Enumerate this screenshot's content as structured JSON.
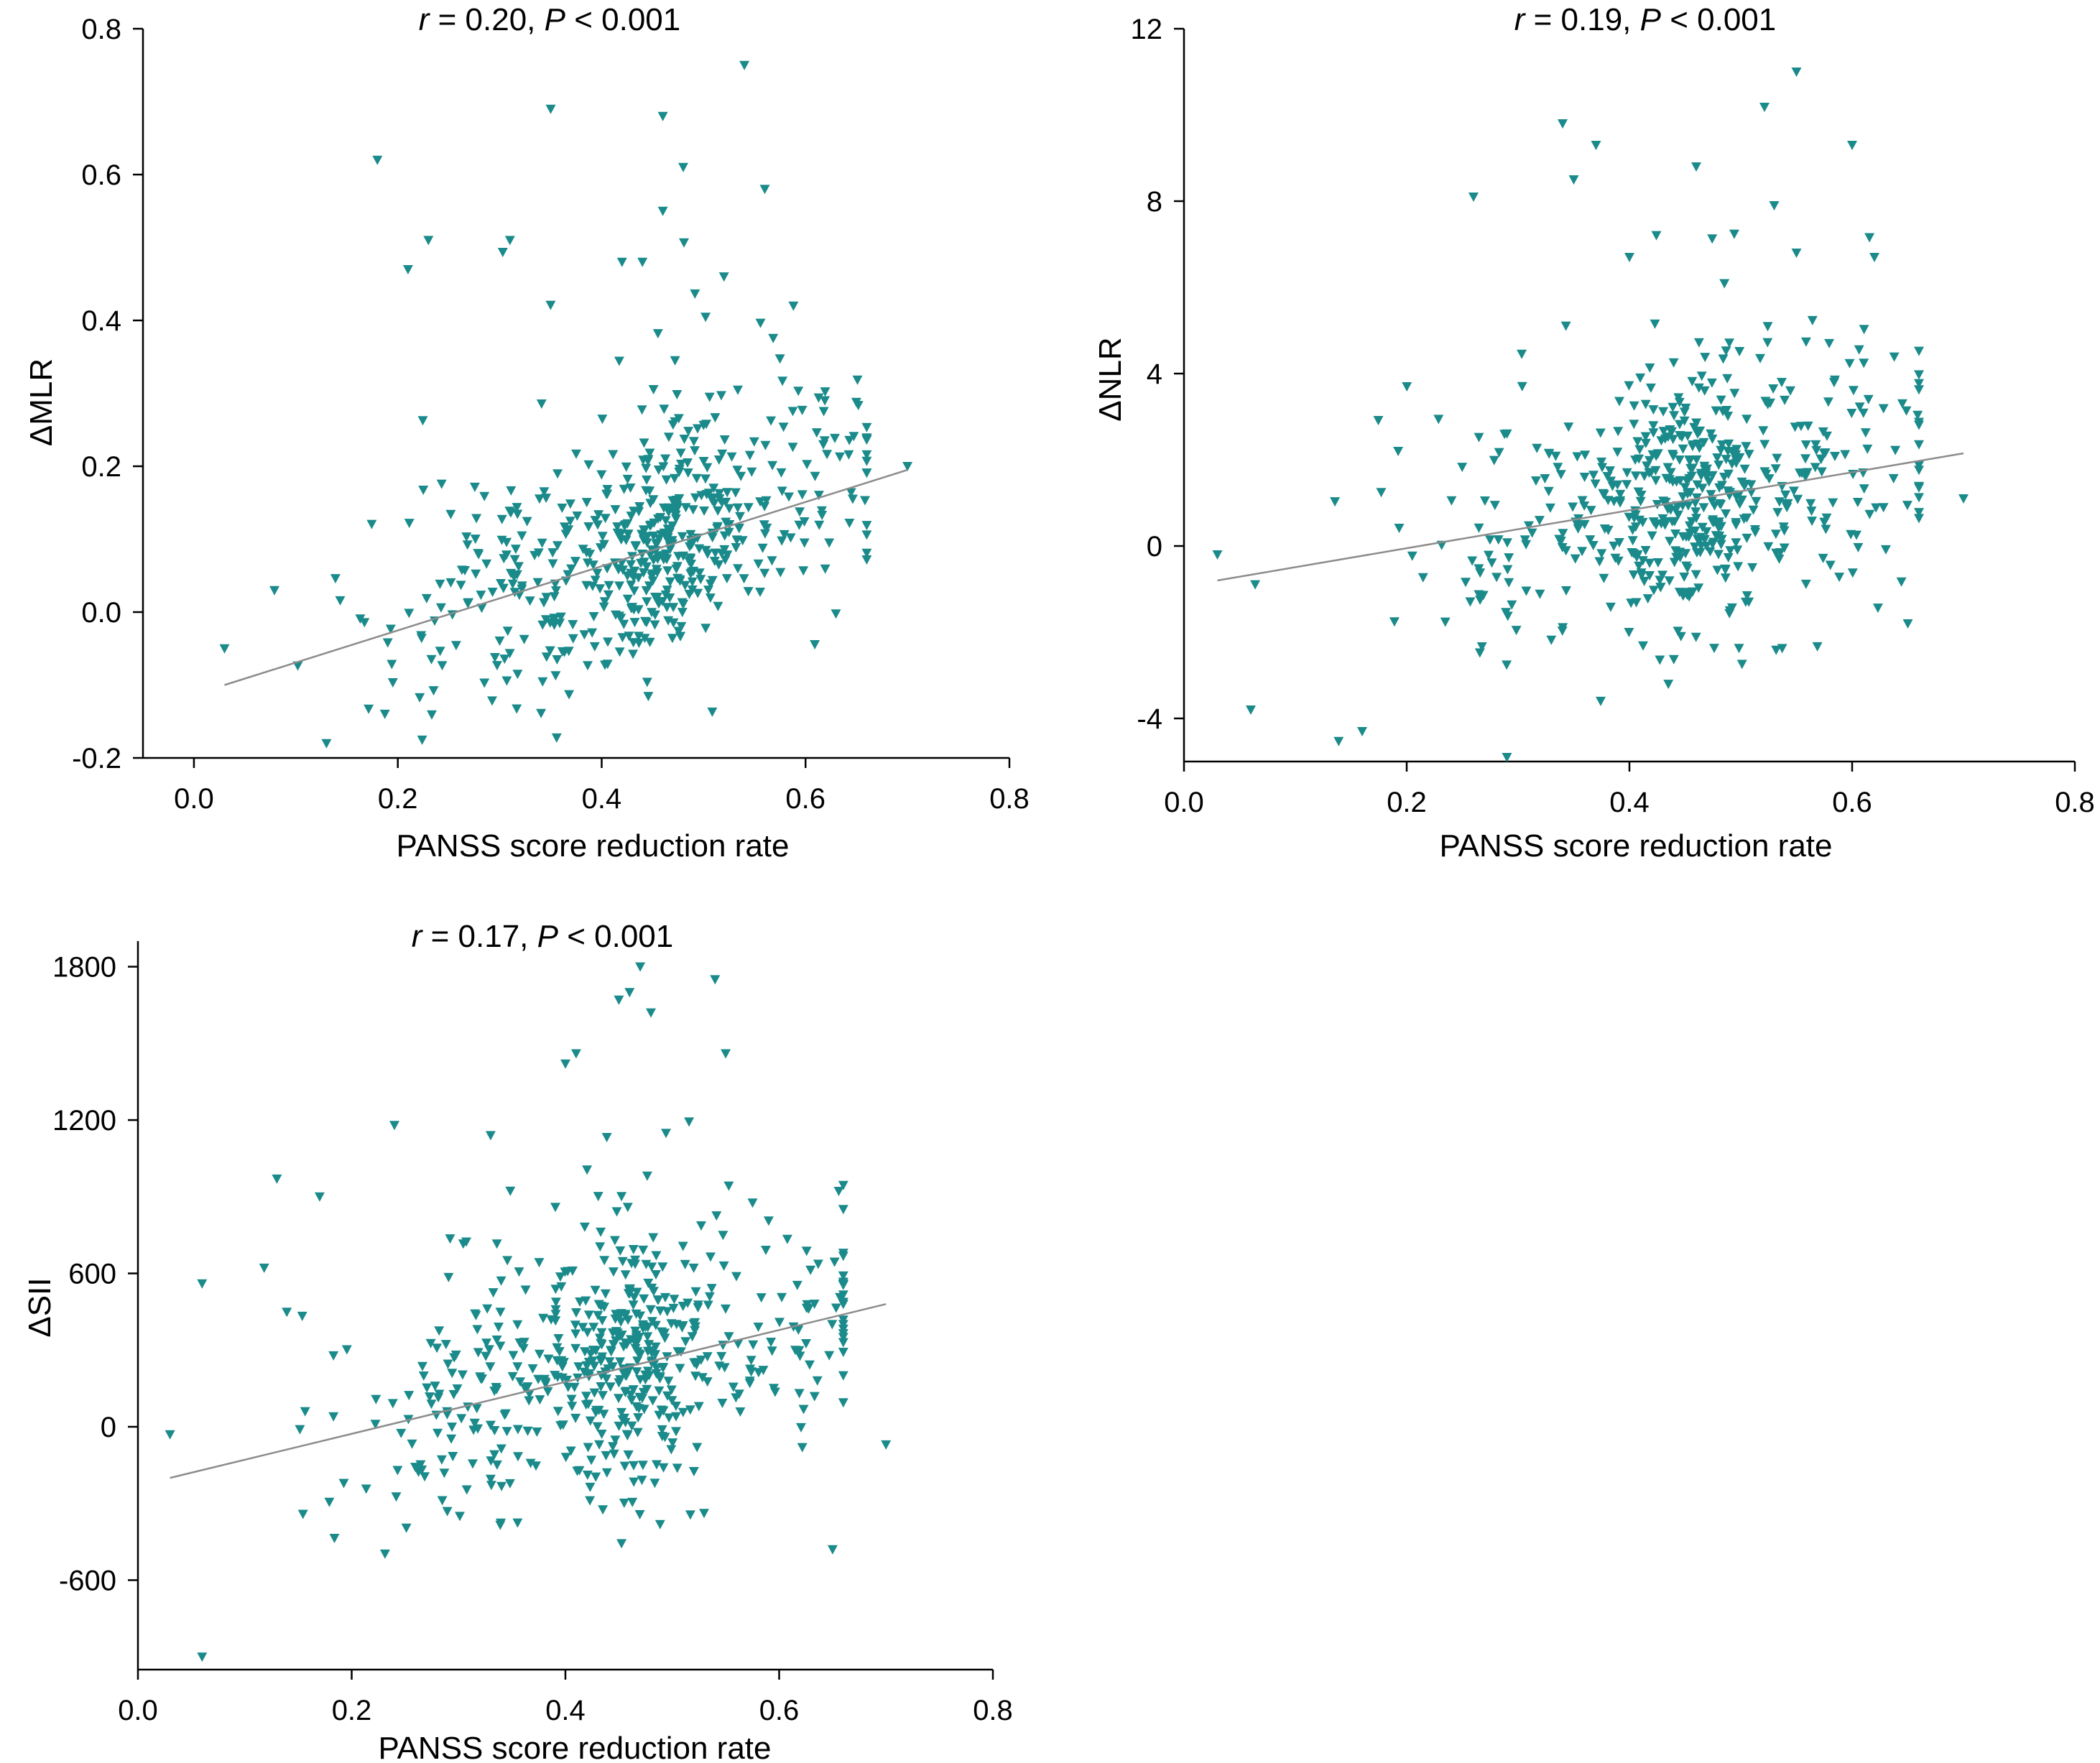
{
  "colors": {
    "marker": "#1a8a8a",
    "fit_line": "#8c8c8c",
    "axis": "#000000"
  },
  "chart_data": [
    {
      "type": "scatter",
      "panel": "top-left",
      "title": {
        "r_symbol": "r",
        "r_text": " = 0.20, ",
        "p_symbol": "P",
        "p_text": " < 0.001"
      },
      "xlabel": "PANSS score reduction rate",
      "ylabel": "ΔMLR",
      "xlim": [
        -0.05,
        0.8
      ],
      "ylim": [
        -0.2,
        0.8
      ],
      "xticks": [
        0.0,
        0.2,
        0.4,
        0.6,
        0.8
      ],
      "xtick_labels": [
        "0.0",
        "0.2",
        "0.4",
        "0.6",
        "0.8"
      ],
      "yticks": [
        -0.2,
        0.0,
        0.2,
        0.4,
        0.6,
        0.8
      ],
      "ytick_labels": [
        "-0.2",
        "0.0",
        "0.2",
        "0.4",
        "0.6",
        "0.8"
      ],
      "fit_line": {
        "x": [
          0.03,
          0.7
        ],
        "y": [
          -0.1,
          0.195
        ]
      },
      "n_points": 560,
      "seed": 11,
      "outliers": [
        [
          0.18,
          0.62
        ],
        [
          0.35,
          0.69
        ],
        [
          0.46,
          0.68
        ],
        [
          0.54,
          0.75
        ],
        [
          0.56,
          0.58
        ],
        [
          0.48,
          0.61
        ],
        [
          0.21,
          0.47
        ],
        [
          0.23,
          0.51
        ],
        [
          0.31,
          0.51
        ],
        [
          0.46,
          0.55
        ],
        [
          0.42,
          0.48
        ],
        [
          0.44,
          0.48
        ],
        [
          0.52,
          0.46
        ],
        [
          0.7,
          0.2
        ],
        [
          0.03,
          -0.05
        ],
        [
          0.13,
          -0.18
        ]
      ]
    },
    {
      "type": "scatter",
      "panel": "top-right",
      "title": {
        "r_symbol": "r",
        "r_text": " = 0.19, ",
        "p_symbol": "P",
        "p_text": " < 0.001"
      },
      "xlabel": "PANSS score reduction rate",
      "ylabel": "ΔNLR",
      "xlim": [
        0.0,
        0.8
      ],
      "ylim": [
        -5,
        12
      ],
      "xticks": [
        0.0,
        0.2,
        0.4,
        0.6,
        0.8
      ],
      "xtick_labels": [
        "0.0",
        "0.2",
        "0.4",
        "0.6",
        "0.8"
      ],
      "yticks": [
        -4,
        0,
        4,
        8,
        12
      ],
      "ytick_labels": [
        "-4",
        "0",
        "4",
        "8",
        "12"
      ],
      "fit_line": {
        "x": [
          0.03,
          0.7
        ],
        "y": [
          -0.8,
          2.15
        ]
      },
      "n_points": 560,
      "seed": 23,
      "outliers": [
        [
          0.55,
          11.0
        ],
        [
          0.34,
          9.8
        ],
        [
          0.37,
          9.3
        ],
        [
          0.6,
          9.3
        ],
        [
          0.26,
          8.1
        ],
        [
          0.35,
          8.5
        ],
        [
          0.46,
          8.8
        ],
        [
          0.53,
          7.9
        ],
        [
          0.55,
          6.8
        ],
        [
          0.62,
          6.7
        ],
        [
          0.4,
          6.7
        ],
        [
          0.29,
          -4.9
        ],
        [
          0.06,
          -3.8
        ],
        [
          0.16,
          -4.3
        ],
        [
          0.03,
          -0.2
        ],
        [
          0.7,
          1.1
        ],
        [
          0.65,
          -1.8
        ]
      ]
    },
    {
      "type": "scatter",
      "panel": "bottom-left",
      "title": {
        "r_symbol": "r",
        "r_text": " = 0.17, ",
        "p_symbol": "P",
        "p_text": " < 0.001"
      },
      "xlabel": "PANSS score reduction rate",
      "ylabel": "ΔSII",
      "xlim": [
        0.0,
        0.8
      ],
      "ylim": [
        -950,
        1900
      ],
      "xticks": [
        0.0,
        0.2,
        0.4,
        0.6,
        0.8
      ],
      "xtick_labels": [
        "0.0",
        "0.2",
        "0.4",
        "0.6",
        "0.8"
      ],
      "yticks": [
        -600,
        0,
        600,
        1200,
        1800
      ],
      "ytick_labels": [
        "-600",
        "0",
        "600",
        "1200",
        "1800"
      ],
      "fit_line": {
        "x": [
          0.03,
          0.7
        ],
        "y": [
          -200,
          480
        ]
      },
      "n_points": 560,
      "seed": 37,
      "outliers": [
        [
          0.47,
          1800
        ],
        [
          0.54,
          1750
        ],
        [
          0.45,
          1670
        ],
        [
          0.46,
          1700
        ],
        [
          0.48,
          1620
        ],
        [
          0.55,
          1460
        ],
        [
          0.4,
          1420
        ],
        [
          0.41,
          1460
        ],
        [
          0.24,
          1180
        ],
        [
          0.33,
          1140
        ],
        [
          0.13,
          970
        ],
        [
          0.17,
          900
        ],
        [
          0.03,
          -30
        ],
        [
          0.06,
          -900
        ],
        [
          0.7,
          -70
        ],
        [
          0.65,
          -480
        ],
        [
          0.06,
          560
        ]
      ]
    }
  ]
}
